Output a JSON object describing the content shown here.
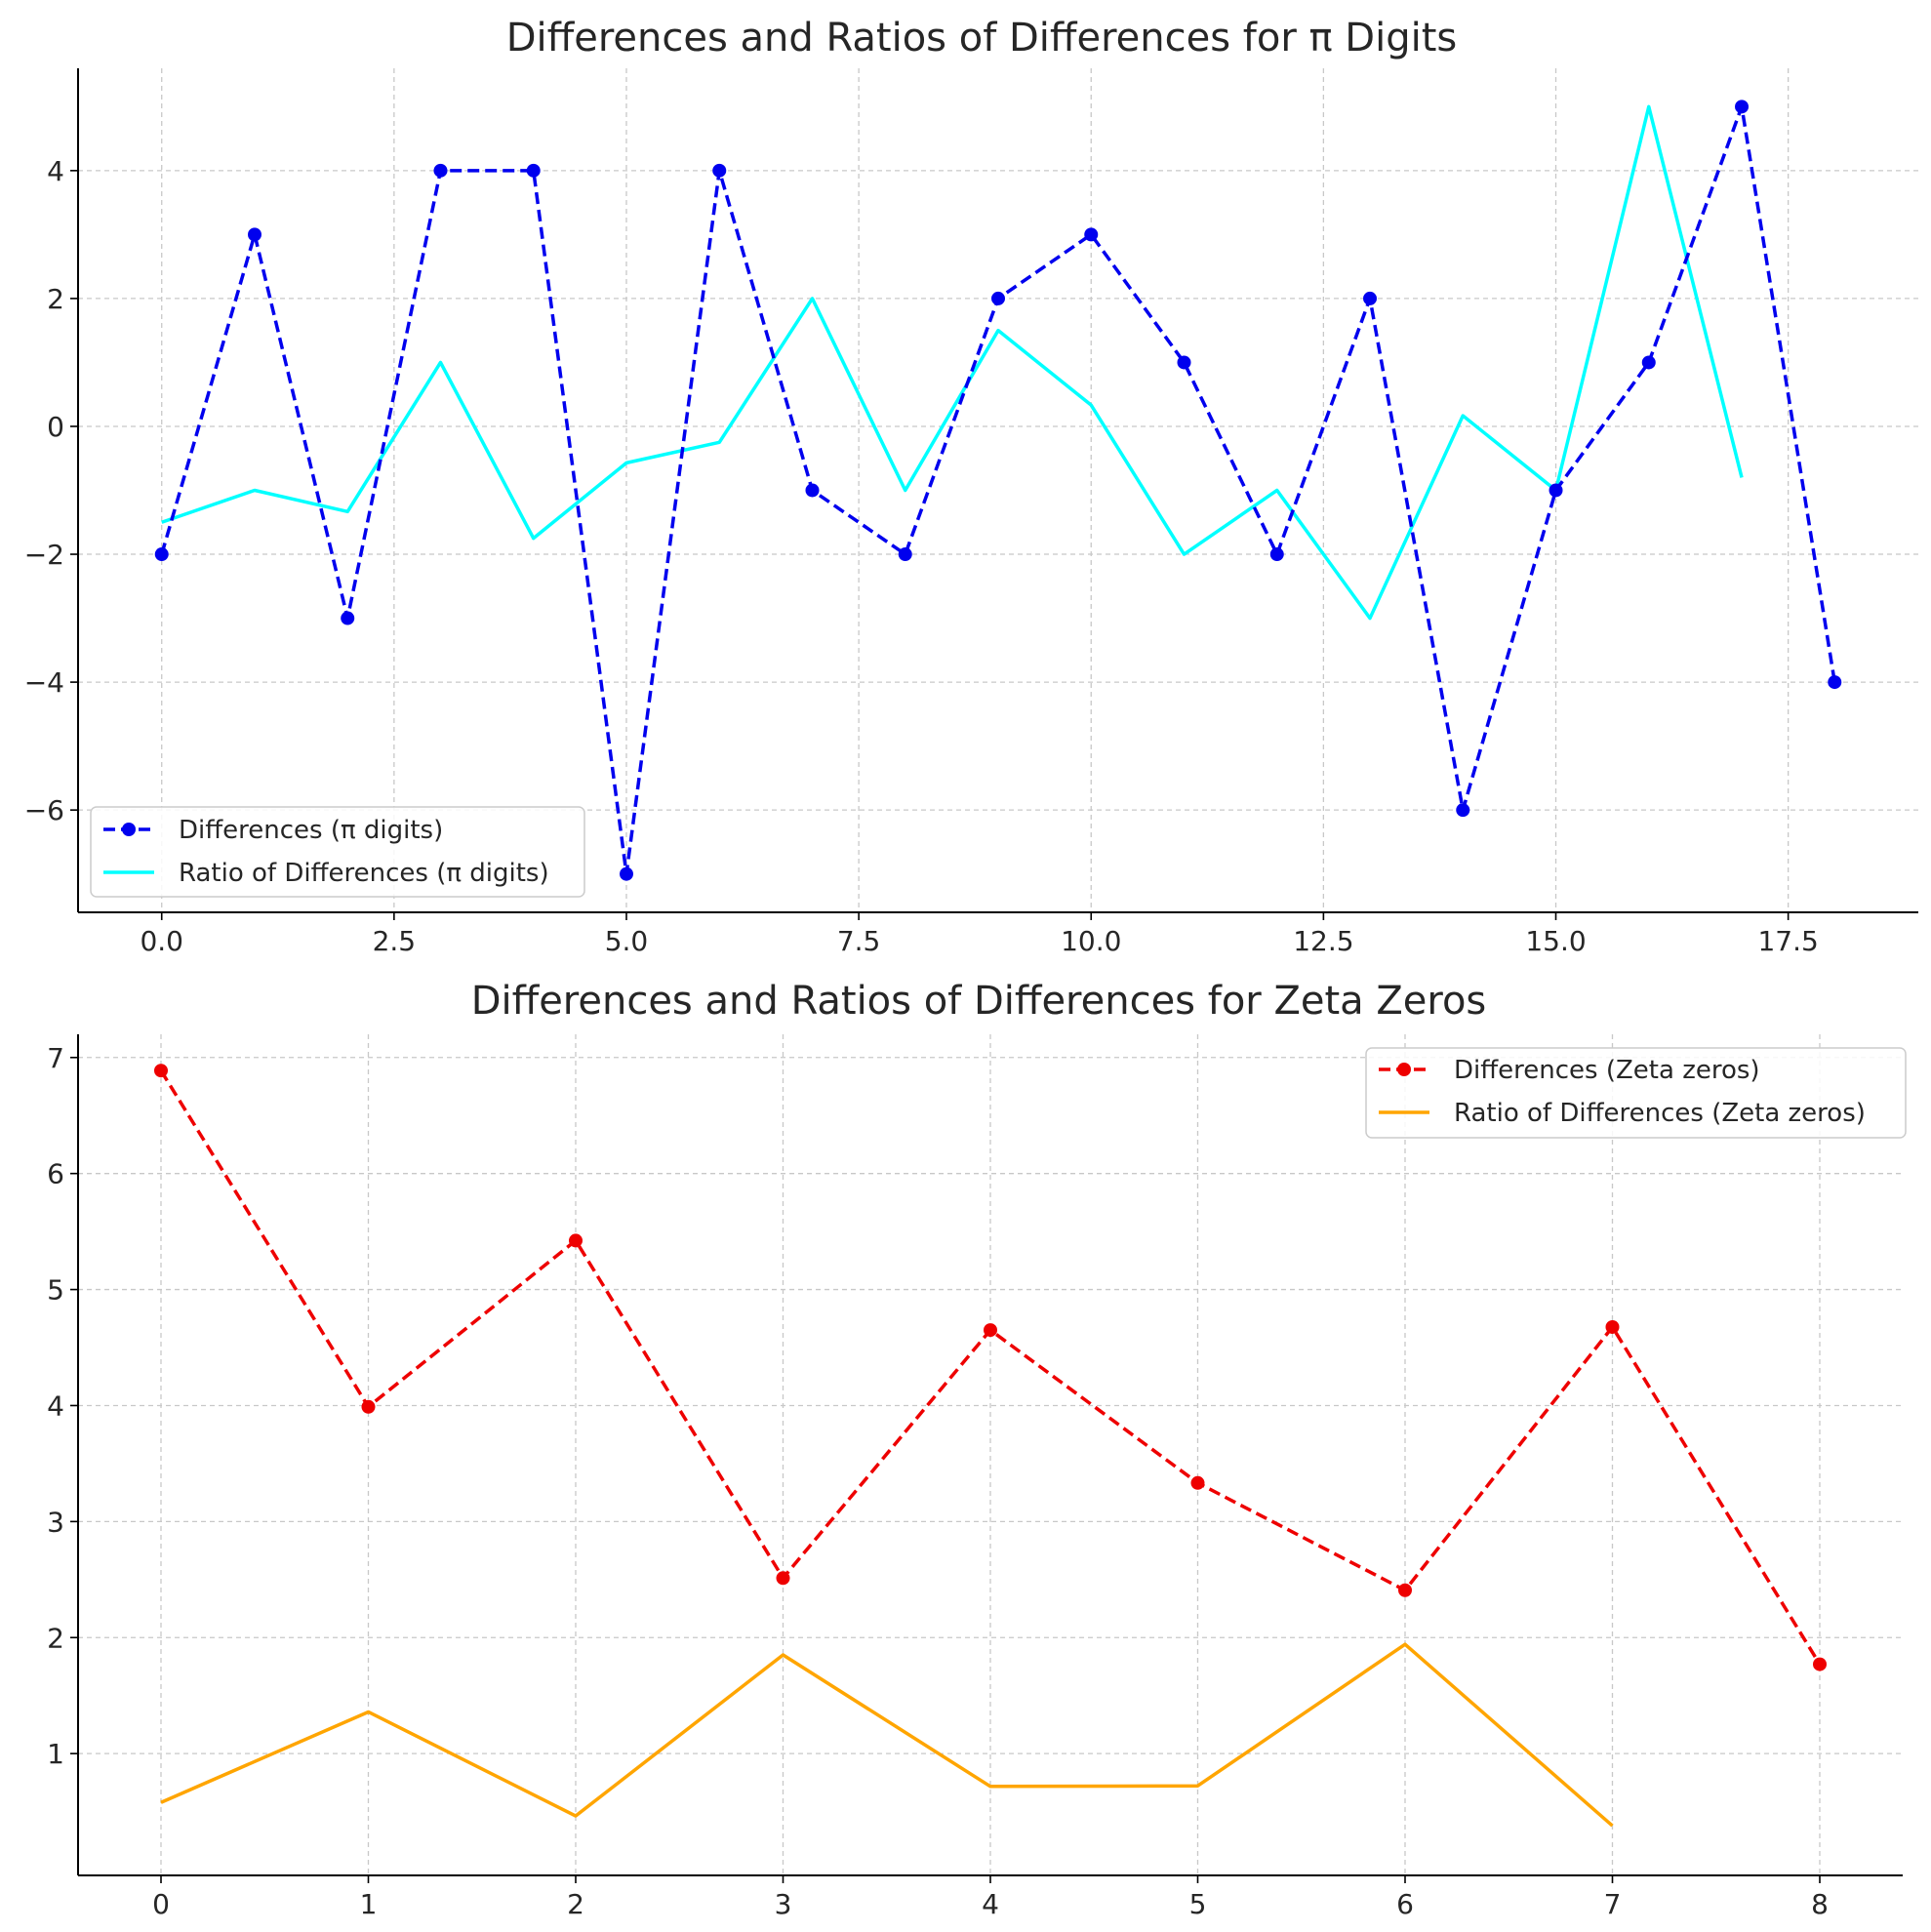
{
  "chart_data": [
    {
      "type": "line",
      "title": "Differences and Ratios of Differences for π Digits",
      "xlabel": "",
      "ylabel": "",
      "xlim": [
        -0.9,
        18.9
      ],
      "ylim": [
        -7.6,
        5.6
      ],
      "xticks": [
        0.0,
        2.5,
        5.0,
        7.5,
        10.0,
        12.5,
        15.0,
        17.5
      ],
      "xtick_labels": [
        "0.0",
        "2.5",
        "5.0",
        "7.5",
        "10.0",
        "12.5",
        "15.0",
        "17.5"
      ],
      "yticks": [
        -6,
        -4,
        -2,
        0,
        2,
        4
      ],
      "ytick_labels": [
        "−6",
        "−4",
        "−2",
        "0",
        "2",
        "4"
      ],
      "grid": true,
      "legend_position": "lower-left",
      "series": [
        {
          "name": "Differences (π digits)",
          "style": "dashed-markers",
          "color": "#0000ee",
          "x": [
            0,
            1,
            2,
            3,
            4,
            5,
            6,
            7,
            8,
            9,
            10,
            11,
            12,
            13,
            14,
            15,
            16,
            17,
            18
          ],
          "y": [
            -2,
            3,
            -3,
            4,
            4,
            -7,
            4,
            -1,
            -2,
            2,
            3,
            1,
            -2,
            2,
            -6,
            -1,
            1,
            5,
            -4
          ]
        },
        {
          "name": "Ratio of Differences (π digits)",
          "style": "solid",
          "color": "#00ffff",
          "x": [
            0,
            1,
            2,
            3,
            4,
            5,
            6,
            7,
            8,
            9,
            10,
            11,
            12,
            13,
            14,
            15,
            16,
            17
          ],
          "y": [
            -1.5,
            -1.0,
            -1.333,
            1.0,
            -1.75,
            -0.571,
            -0.25,
            2.0,
            -1.0,
            1.5,
            0.333,
            -2.0,
            -1.0,
            -3.0,
            0.167,
            -1.0,
            5.0,
            -0.8
          ]
        }
      ]
    },
    {
      "type": "line",
      "title": "Differences and Ratios of Differences for Zeta Zeros",
      "xlabel": "",
      "ylabel": "",
      "xlim": [
        -0.4,
        8.4
      ],
      "ylim": [
        -0.05,
        7.2
      ],
      "xticks": [
        0,
        1,
        2,
        3,
        4,
        5,
        6,
        7,
        8
      ],
      "xtick_labels": [
        "0",
        "1",
        "2",
        "3",
        "4",
        "5",
        "6",
        "7",
        "8"
      ],
      "yticks": [
        1,
        2,
        3,
        4,
        5,
        6,
        7
      ],
      "ytick_labels": [
        "1",
        "2",
        "3",
        "4",
        "5",
        "6",
        "7"
      ],
      "grid": true,
      "legend_position": "upper-right",
      "series": [
        {
          "name": "Differences (Zeta zeros)",
          "style": "dashed-markers",
          "color": "#ee0000",
          "x": [
            0,
            1,
            2,
            3,
            4,
            5,
            6,
            7,
            8
          ],
          "y": [
            6.887,
            3.989,
            5.422,
            2.513,
            4.651,
            3.333,
            2.408,
            4.677,
            1.77
          ]
        },
        {
          "name": "Ratio of Differences (Zeta zeros)",
          "style": "solid",
          "color": "#ffa500",
          "x": [
            0,
            1,
            2,
            3,
            4,
            5,
            6,
            7
          ],
          "y": [
            0.579,
            1.359,
            0.463,
            1.851,
            0.717,
            0.722,
            1.942,
            0.378
          ]
        }
      ]
    }
  ]
}
